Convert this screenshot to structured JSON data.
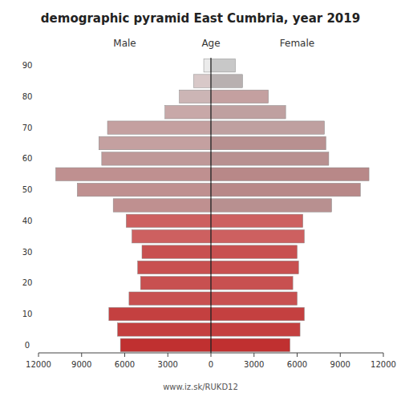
{
  "chart_data": {
    "type": "pyramid",
    "orientation": "horizontal",
    "title": "demographic pyramid East Cumbria, year 2019",
    "ylabel": "Age",
    "footnote": "www.iz.sk/RUKD12",
    "categories": [
      "90",
      null,
      "80",
      null,
      "70",
      null,
      "60",
      null,
      "50",
      null,
      "40",
      null,
      "30",
      null,
      "20",
      null,
      "10",
      null,
      "0"
    ],
    "series": [
      {
        "name": "Male",
        "values": [
          500,
          1200,
          2200,
          3200,
          7200,
          7800,
          7600,
          10800,
          9300,
          6800,
          5900,
          5500,
          4800,
          5100,
          4900,
          5700,
          7100,
          6500,
          6300
        ],
        "colors": [
          "#ebebeb",
          "#d8c8c8",
          "#ccb5b5",
          "#c8a8a8",
          "#c4a0a0",
          "#c4a0a0",
          "#bf9898",
          "#bf9090",
          "#bf9090",
          "#bf9090",
          "#cd6060",
          "#cd6060",
          "#c85050",
          "#c85050",
          "#c85050",
          "#c85050",
          "#c44040",
          "#c44040",
          "#c03030"
        ]
      },
      {
        "name": "Female",
        "values": [
          1700,
          2200,
          4000,
          5200,
          7900,
          8000,
          8200,
          11000,
          10400,
          8400,
          6400,
          6500,
          6000,
          6100,
          5700,
          6000,
          6500,
          6200,
          5500
        ],
        "colors": [
          "#c8c8c8",
          "#b8b0b0",
          "#c4a0a0",
          "#bfa0a0",
          "#bfa0a0",
          "#b89090",
          "#b89090",
          "#b88888",
          "#b88888",
          "#b89090",
          "#cd6060",
          "#cd6060",
          "#c85050",
          "#c85050",
          "#c85050",
          "#c85050",
          "#c44040",
          "#c44040",
          "#c03030"
        ]
      }
    ],
    "xlim": [
      0,
      12000
    ],
    "xticks": [
      0,
      3000,
      6000,
      9000,
      12000
    ],
    "grid": false
  }
}
